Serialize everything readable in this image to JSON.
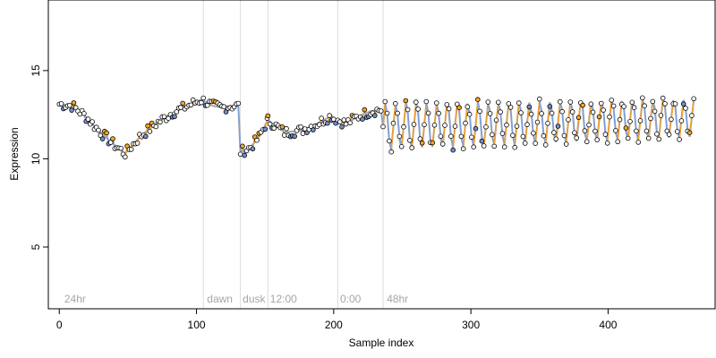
{
  "chart_data": {
    "type": "scatter",
    "title": "",
    "xlabel": "Sample index",
    "ylabel": "Expression",
    "xlim": [
      -8,
      478
    ],
    "ylim": [
      1.5,
      19
    ],
    "xticks": [
      "0",
      "100",
      "200",
      "300",
      "400"
    ],
    "yticks": [
      "5",
      "10",
      "15"
    ],
    "grid": false,
    "legend": "none",
    "vlines": [
      105,
      132,
      152,
      203,
      236
    ],
    "annotations": [
      {
        "text": "24hr",
        "x": 3
      },
      {
        "text": "dawn",
        "x": 107
      },
      {
        "text": "dusk",
        "x": 133
      },
      {
        "text": "12:00",
        "x": 153
      },
      {
        "text": "0:00",
        "x": 204
      },
      {
        "text": "48hr",
        "x": 238
      }
    ],
    "colors": {
      "point_edge": "#000000",
      "point_fill_high": "#f5a623",
      "point_fill_low": "#6e8fd0",
      "smooth_line": "#a6a6a6",
      "vline": "#dcdcdc",
      "segment_up": "#f0a030",
      "segment_down": "#7ea0dc"
    },
    "series": [
      {
        "segments": [
          {
            "x0": 0,
            "x1": 48,
            "y": [
              13.1,
              13.0,
              12.4,
              11.6,
              10.9,
              10.3
            ]
          },
          {
            "x0": 48,
            "x1": 105,
            "y": [
              10.3,
              11.3,
              12.0,
              12.6,
              13.0,
              13.4
            ]
          },
          {
            "x0": 105,
            "x1": 132,
            "y": [
              13.3,
              13.0,
              12.9,
              13.0,
              13.0
            ]
          },
          {
            "x0": 132,
            "x1": 152,
            "y": [
              10.4,
              10.6,
              11.2,
              12.2
            ]
          },
          {
            "x0": 152,
            "x1": 200,
            "y": [
              12.2,
              11.5,
              11.6,
              12.0,
              12.5
            ]
          },
          {
            "x0": 200,
            "x1": 236,
            "y": [
              12.3,
              12.0,
              12.4,
              12.7,
              12.8
            ]
          }
        ],
        "oscillation": {
          "x0": 236,
          "x1": 463,
          "period": 7.5,
          "y_center": [
            11.8,
            12.3
          ],
          "amplitude": [
            1.3,
            1.1
          ]
        }
      }
    ]
  }
}
